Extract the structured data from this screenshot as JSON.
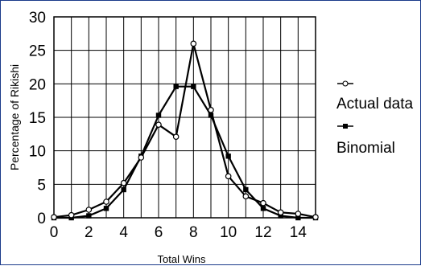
{
  "chart_data": {
    "type": "line",
    "xlabel": "Total Wins",
    "ylabel": "Percentage of Rikishi",
    "xlim": [
      0,
      15
    ],
    "ylim": [
      0,
      30
    ],
    "x_ticks": [
      0,
      2,
      4,
      6,
      8,
      10,
      12,
      14
    ],
    "y_ticks": [
      0,
      5,
      10,
      15,
      20,
      25,
      30
    ],
    "grid": true,
    "legend_position": "right",
    "x": [
      0,
      1,
      2,
      3,
      4,
      5,
      6,
      7,
      8,
      9,
      10,
      11,
      12,
      13,
      14,
      15
    ],
    "series": [
      {
        "name": "Actual data",
        "marker": "open-circle",
        "color": "#000000",
        "values": [
          0.1,
          0.4,
          1.2,
          2.4,
          5.2,
          9.0,
          13.9,
          12.1,
          26.0,
          16.1,
          6.2,
          3.2,
          2.2,
          0.8,
          0.6,
          0.1
        ]
      },
      {
        "name": "Binomial",
        "marker": "filled-square",
        "color": "#000000",
        "values": [
          0.0,
          0.0,
          0.3,
          1.4,
          4.2,
          9.2,
          15.3,
          19.6,
          19.6,
          15.3,
          9.2,
          4.2,
          1.4,
          0.3,
          0.0,
          0.0
        ]
      }
    ]
  }
}
